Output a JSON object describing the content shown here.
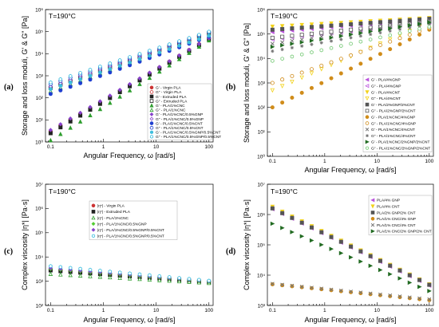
{
  "figure": {
    "panels": [
      {
        "label": "(a)",
        "temperature": "T=190°C"
      },
      {
        "label": "(b)",
        "temperature": "T=190°C"
      },
      {
        "label": "(c)",
        "temperature": "T=190°C"
      },
      {
        "label": "(d)",
        "temperature": "T=190°C"
      }
    ]
  },
  "chart_data": [
    {
      "type": "scatter",
      "panel": "(a)",
      "title": "T=190°C",
      "xlabel": "Angular Frequency, ω [rad/s]",
      "ylabel": "Storage and loss moduli, G' & G\" [Pa]",
      "xscale": "log",
      "yscale": "log",
      "xlim": [
        0.08,
        120
      ],
      "ylim": [
        1,
        1000000
      ],
      "xticks": [
        "0.1",
        "1",
        "10",
        "100"
      ],
      "yticks": [
        "10⁰",
        "10¹",
        "10²",
        "10³",
        "10⁴",
        "10⁵",
        "10⁶"
      ],
      "legend_position": "middle-right",
      "series": [
        {
          "name": "G' - Virgin PLA",
          "color": "#cc3333",
          "marker": "circle",
          "fill": true,
          "start": 3,
          "end": 50000
        },
        {
          "name": "G\" - Virgin PLA",
          "color": "#cc3333",
          "marker": "circle",
          "fill": false,
          "start": 300,
          "end": 90000
        },
        {
          "name": "G' - Extruded PLA",
          "color": "#222222",
          "marker": "square",
          "fill": true,
          "start": 2.5,
          "end": 45000
        },
        {
          "name": "G\" - Extruded PLA",
          "color": "#222222",
          "marker": "square",
          "fill": false,
          "start": 280,
          "end": 85000
        },
        {
          "name": "G' - PLA/1%CNC",
          "color": "#2e9e2e",
          "marker": "triangle",
          "fill": true,
          "start": 1.2,
          "end": 40000
        },
        {
          "name": "G\" - PLA/1%CNC",
          "color": "#2e9e2e",
          "marker": "triangle",
          "fill": false,
          "start": 200,
          "end": 80000
        },
        {
          "name": "G' - PLA/1%CNC/0.5%GNP",
          "color": "#8844cc",
          "marker": "diamond",
          "fill": true,
          "start": 3.5,
          "end": 50000
        },
        {
          "name": "G\" - PLA/1%CNC/0.5%GNP",
          "color": "#8844cc",
          "marker": "diamond",
          "fill": false,
          "start": 320,
          "end": 90000
        },
        {
          "name": "G' - PLA/1%CNC/0.5%CNT",
          "color": "#1f3fd0",
          "marker": "circle",
          "fill": true,
          "start": 150,
          "end": 60000
        },
        {
          "name": "G\" - PLA/1%CNC/0.5%CNT",
          "color": "#1f3fd0",
          "marker": "circle",
          "fill": false,
          "start": 420,
          "end": 95000
        },
        {
          "name": "G' - PLA/1%CNC/0.5%GNP/0.5%CNT",
          "color": "#3fbfdf",
          "marker": "hexagon",
          "fill": true,
          "start": 250,
          "end": 65000
        },
        {
          "name": "G\" - PLA/1%CNC/0.5%GNP/0.5%CNT",
          "color": "#3fbfdf",
          "marker": "hexagon",
          "fill": false,
          "start": 500,
          "end": 100000
        }
      ]
    },
    {
      "type": "scatter",
      "panel": "(b)",
      "title": "T=190°C",
      "xlabel": "Angular Frequency, ω [rad/s]",
      "ylabel": "Storage and loss moduli, G' & G\" [Pa]",
      "xscale": "log",
      "yscale": "log",
      "xlim": [
        0.08,
        120
      ],
      "ylim": [
        1,
        1000000
      ],
      "xticks": [
        "0.1",
        "1",
        "10",
        "100"
      ],
      "yticks": [
        "10⁰",
        "10¹",
        "10²",
        "10³",
        "10⁴",
        "10⁵",
        "10⁶"
      ],
      "legend_position": "bottom-right",
      "series": [
        {
          "name": "G' - PLA/4%GNP",
          "color": "#bb55dd",
          "marker": "tri-left",
          "fill": true,
          "start": 120000,
          "end": 400000
        },
        {
          "name": "G\" - PLA/4%GNP",
          "color": "#bb55dd",
          "marker": "tri-left",
          "fill": false,
          "start": 60000,
          "end": 300000
        },
        {
          "name": "G' - PLA/4%CNT",
          "color": "#f2d21b",
          "marker": "tri-down",
          "fill": true,
          "start": 200000,
          "end": 450000
        },
        {
          "name": "G\" - PLA/4%CNT",
          "color": "#f2d21b",
          "marker": "tri-down",
          "fill": false,
          "start": 500,
          "end": 300000
        },
        {
          "name": "G' - PLA/2%GNP/2%CNT",
          "color": "#555555",
          "marker": "square",
          "fill": true,
          "start": 150000,
          "end": 420000
        },
        {
          "name": "G\" - PLA/2%GNP/2%CNT",
          "color": "#555555",
          "marker": "square",
          "fill": false,
          "start": 70000,
          "end": 320000
        },
        {
          "name": "G' - PLA/1%CNC/4%GNP",
          "color": "#d08c1a",
          "marker": "circle",
          "fill": true,
          "start": 100,
          "end": 150000
        },
        {
          "name": "G\" - PLA/1%CNC/4%GNP",
          "color": "#d08c1a",
          "marker": "circle",
          "fill": false,
          "start": 1000,
          "end": 180000
        },
        {
          "name": "G' - PLA/1%CNC/4%CNT",
          "color": "#777777",
          "marker": "x",
          "fill": true,
          "start": 40000,
          "end": 350000
        },
        {
          "name": "G\" - PLA/1%CNC/4%CNT",
          "color": "#777777",
          "marker": "star",
          "fill": false,
          "start": 20000,
          "end": 250000
        },
        {
          "name": "G' - PLA/1%CNC/2%GNP/2%CNT",
          "color": "#226b22",
          "marker": "tri-right",
          "fill": true,
          "start": 30000,
          "end": 300000
        },
        {
          "name": "G\" - PLA/1%CNC/2%GNP/2%CNT",
          "color": "#7ccc7c",
          "marker": "hexagon",
          "fill": false,
          "start": 8000,
          "end": 200000
        }
      ]
    },
    {
      "type": "scatter",
      "panel": "(c)",
      "title": "T=190°C",
      "xlabel": "Angular Frequency, ω [rad/s]",
      "ylabel": "Complex viscosity |η*| [Pa·s]",
      "xscale": "log",
      "yscale": "log",
      "xlim": [
        0.08,
        120
      ],
      "ylim": [
        100,
        10000000
      ],
      "xticks": [
        "0.1",
        "1",
        "10",
        "100"
      ],
      "yticks": [
        "10²",
        "10³",
        "10⁴",
        "10⁵",
        "10⁶",
        "10⁷"
      ],
      "legend_position": "top-center",
      "series": [
        {
          "name": "|η*| - Virgin PLA",
          "color": "#cc3333",
          "marker": "circle",
          "fill": true,
          "start": 3000,
          "end": 950
        },
        {
          "name": "|η*| - Extruded PLA",
          "color": "#222222",
          "marker": "square",
          "fill": true,
          "start": 2800,
          "end": 900
        },
        {
          "name": "|η*| - PLA/1%CNC",
          "color": "#2e9e2e",
          "marker": "triangle",
          "fill": false,
          "start": 2000,
          "end": 850
        },
        {
          "name": "|η*| - PLA/1%CNC/0.5%GNP",
          "color": "#55cc33",
          "marker": "diamond",
          "fill": true,
          "start": 3200,
          "end": 950
        },
        {
          "name": "|η*| - PLA/1%CNC/0.5%GNP/0.5%CNT",
          "color": "#8844cc",
          "marker": "diamond",
          "fill": true,
          "start": 3500,
          "end": 1000
        },
        {
          "name": "|η*| - PLA/1%CNC/0.5%GNP/0.5%CNT",
          "color": "#3fbfdf",
          "marker": "hexagon",
          "fill": false,
          "start": 4200,
          "end": 1050
        }
      ]
    },
    {
      "type": "scatter",
      "panel": "(d)",
      "title": "T=190°C",
      "xlabel": "Angular Frequency, ω [rad/s]",
      "ylabel": "Complex viscosity |η*| [Pa·s]",
      "xscale": "log",
      "yscale": "log",
      "xlim": [
        0.08,
        120
      ],
      "ylim": [
        1000,
        10000000
      ],
      "xticks": [
        "0.1",
        "1",
        "10",
        "100"
      ],
      "yticks": [
        "10³",
        "10⁴",
        "10⁵",
        "10⁶",
        "10⁷"
      ],
      "legend_position": "top-right",
      "series": [
        {
          "name": "PLA/4% GNP",
          "color": "#bb55dd",
          "marker": "tri-left",
          "fill": true,
          "start": 1500000,
          "end": 4500
        },
        {
          "name": "PLA/4% CNT",
          "color": "#f2d21b",
          "marker": "tri-down",
          "fill": true,
          "start": 1800000,
          "end": 5000
        },
        {
          "name": "PLA/2% GNP/2% CNT",
          "color": "#555555",
          "marker": "square",
          "fill": true,
          "start": 1600000,
          "end": 4800
        },
        {
          "name": "PLA/1% CNC/4% GNP",
          "color": "#d08c1a",
          "marker": "circle",
          "fill": true,
          "start": 5000,
          "end": 1500
        },
        {
          "name": "PLA/1% CNC/4% CNT",
          "color": "#777777",
          "marker": "x",
          "fill": true,
          "start": 5200,
          "end": 1600
        },
        {
          "name": "PLA/1% CNC/2% GNP/2% CNT",
          "color": "#226b22",
          "marker": "tri-right",
          "fill": true,
          "start": 500000,
          "end": 3000
        }
      ]
    }
  ]
}
